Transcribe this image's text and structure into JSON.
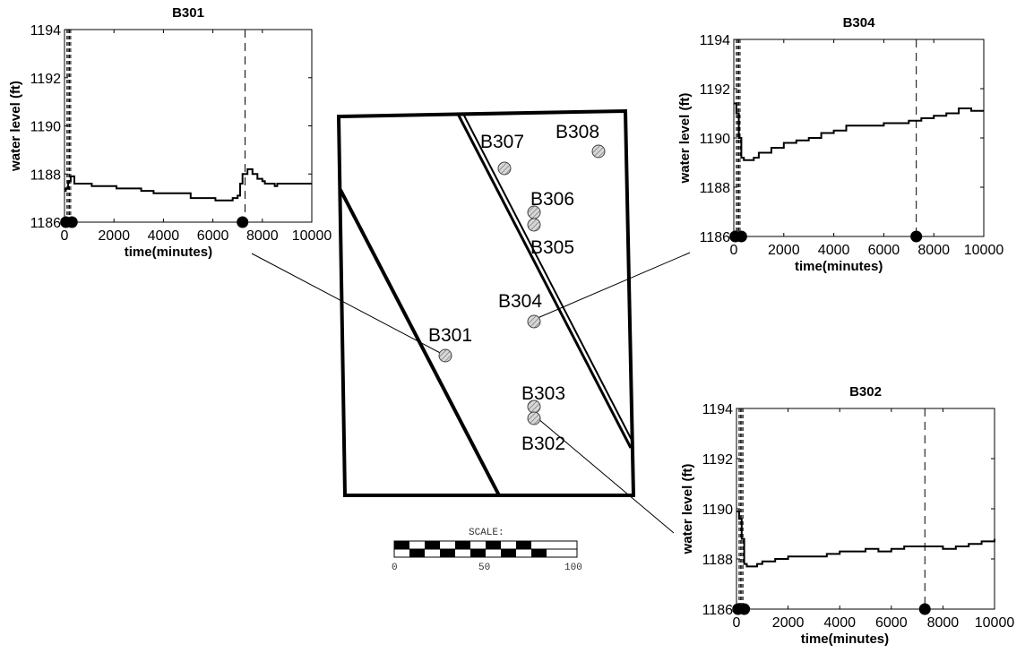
{
  "map": {
    "wells": [
      {
        "id": "B301",
        "label": "B301"
      },
      {
        "id": "B302",
        "label": "B302"
      },
      {
        "id": "B303",
        "label": "B303"
      },
      {
        "id": "B304",
        "label": "B304"
      },
      {
        "id": "B305",
        "label": "B305"
      },
      {
        "id": "B306",
        "label": "B306"
      },
      {
        "id": "B307",
        "label": "B307"
      },
      {
        "id": "B308",
        "label": "B308"
      }
    ],
    "scale": {
      "title": "SCALE:",
      "ticks": [
        "0",
        "50",
        "100"
      ]
    }
  },
  "chart_data": [
    {
      "type": "line",
      "title": "B301",
      "xlabel": "time(minutes)",
      "ylabel": "water level (ft)",
      "xlim": [
        0,
        10000
      ],
      "ylim": [
        1186,
        1194
      ],
      "xticks": [
        "0",
        "2000",
        "4000",
        "6000",
        "8000",
        "10000"
      ],
      "yticks": [
        "1186",
        "1188",
        "1190",
        "1192",
        "1194"
      ],
      "vlines": [
        100,
        150,
        200,
        250,
        7300
      ],
      "markers": [
        {
          "x": 60,
          "y": 1186
        },
        {
          "x": 300,
          "y": 1186
        },
        {
          "x": 7200,
          "y": 1186
        }
      ],
      "series": [
        {
          "x": [
            0,
            50,
            150,
            250,
            400,
            1000,
            1100,
            2000,
            2100,
            3000,
            3100,
            3500,
            3600,
            5000,
            5100,
            6000,
            6100,
            6700,
            6800,
            7000,
            7100,
            7200,
            7400,
            7600,
            7800,
            8000,
            8100,
            8500,
            8600,
            9000,
            9100,
            10000
          ],
          "y": [
            1187.3,
            1187.4,
            1187.7,
            1187.9,
            1187.6,
            1187.6,
            1187.5,
            1187.5,
            1187.4,
            1187.4,
            1187.3,
            1187.3,
            1187.2,
            1187.2,
            1187.0,
            1187.0,
            1186.9,
            1186.9,
            1187.0,
            1187.1,
            1187.6,
            1188.0,
            1188.2,
            1188.0,
            1187.8,
            1187.7,
            1187.6,
            1187.5,
            1187.6,
            1187.6,
            1187.6,
            1187.6
          ]
        }
      ]
    },
    {
      "type": "line",
      "title": "B304",
      "xlabel": "time(minutes)",
      "ylabel": "water level (ft)",
      "xlim": [
        0,
        10000
      ],
      "ylim": [
        1186,
        1194
      ],
      "xticks": [
        "0",
        "2000",
        "4000",
        "6000",
        "8000",
        "10000"
      ],
      "yticks": [
        "1186",
        "1188",
        "1190",
        "1192",
        "1194"
      ],
      "vlines": [
        100,
        150,
        200,
        250,
        7300
      ],
      "markers": [
        {
          "x": 60,
          "y": 1186
        },
        {
          "x": 300,
          "y": 1186
        },
        {
          "x": 7300,
          "y": 1186
        }
      ],
      "series": [
        {
          "x": [
            0,
            100,
            200,
            300,
            400,
            800,
            1000,
            1500,
            2000,
            2500,
            3000,
            3500,
            4000,
            4500,
            5000,
            6000,
            7000,
            7500,
            8000,
            8500,
            9000,
            9300,
            9500,
            10000
          ],
          "y": [
            1191.4,
            1191.0,
            1190.0,
            1189.2,
            1189.1,
            1189.2,
            1189.4,
            1189.6,
            1189.8,
            1189.9,
            1190.0,
            1190.2,
            1190.3,
            1190.5,
            1190.5,
            1190.6,
            1190.7,
            1190.8,
            1190.9,
            1191.0,
            1191.2,
            1191.2,
            1191.1,
            1191.1
          ]
        }
      ]
    },
    {
      "type": "line",
      "title": "B302",
      "xlabel": "time(minutes)",
      "ylabel": "water level (ft)",
      "xlim": [
        0,
        10000
      ],
      "ylim": [
        1186,
        1194
      ],
      "xticks": [
        "0",
        "2000",
        "4000",
        "6000",
        "8000",
        "10000"
      ],
      "yticks": [
        "1186",
        "1188",
        "1190",
        "1192",
        "1194"
      ],
      "vlines": [
        100,
        150,
        200,
        250,
        7300
      ],
      "markers": [
        {
          "x": 60,
          "y": 1186
        },
        {
          "x": 300,
          "y": 1186
        },
        {
          "x": 7300,
          "y": 1186
        }
      ],
      "series": [
        {
          "x": [
            0,
            100,
            200,
            300,
            400,
            800,
            1000,
            1500,
            2000,
            2500,
            3000,
            3500,
            4000,
            4500,
            5000,
            5500,
            6000,
            6500,
            7000,
            7500,
            8000,
            8500,
            9000,
            9500,
            10000
          ],
          "y": [
            1189.9,
            1189.6,
            1188.8,
            1187.8,
            1187.7,
            1187.8,
            1187.9,
            1188.0,
            1188.1,
            1188.1,
            1188.1,
            1188.2,
            1188.3,
            1188.3,
            1188.4,
            1188.3,
            1188.4,
            1188.5,
            1188.5,
            1188.5,
            1188.4,
            1188.5,
            1188.6,
            1188.7,
            1188.8
          ]
        }
      ]
    }
  ]
}
